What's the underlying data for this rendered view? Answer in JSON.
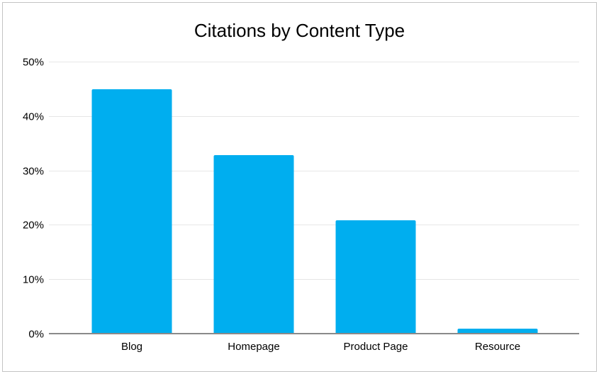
{
  "chart_data": {
    "type": "bar",
    "title": "Citations by Content Type",
    "categories": [
      "Blog",
      "Homepage",
      "Product Page",
      "Resource"
    ],
    "values": [
      45,
      33,
      21,
      1
    ],
    "value_unit": "%",
    "xlabel": "",
    "ylabel": "",
    "ylim": [
      0,
      50
    ],
    "yticks": [
      {
        "value": 0,
        "label": "0%"
      },
      {
        "value": 10,
        "label": "10%"
      },
      {
        "value": 20,
        "label": "20%"
      },
      {
        "value": 30,
        "label": "30%"
      },
      {
        "value": 40,
        "label": "40%"
      },
      {
        "value": 50,
        "label": "50%"
      }
    ],
    "grid": true,
    "legend": "none"
  },
  "colors": {
    "bar": "#00aeef",
    "gridline": "#e6e6e6",
    "axis_line": "#8a8a8a",
    "text": "#000000",
    "frame_border": "#c4c4c4",
    "background": "#ffffff"
  }
}
